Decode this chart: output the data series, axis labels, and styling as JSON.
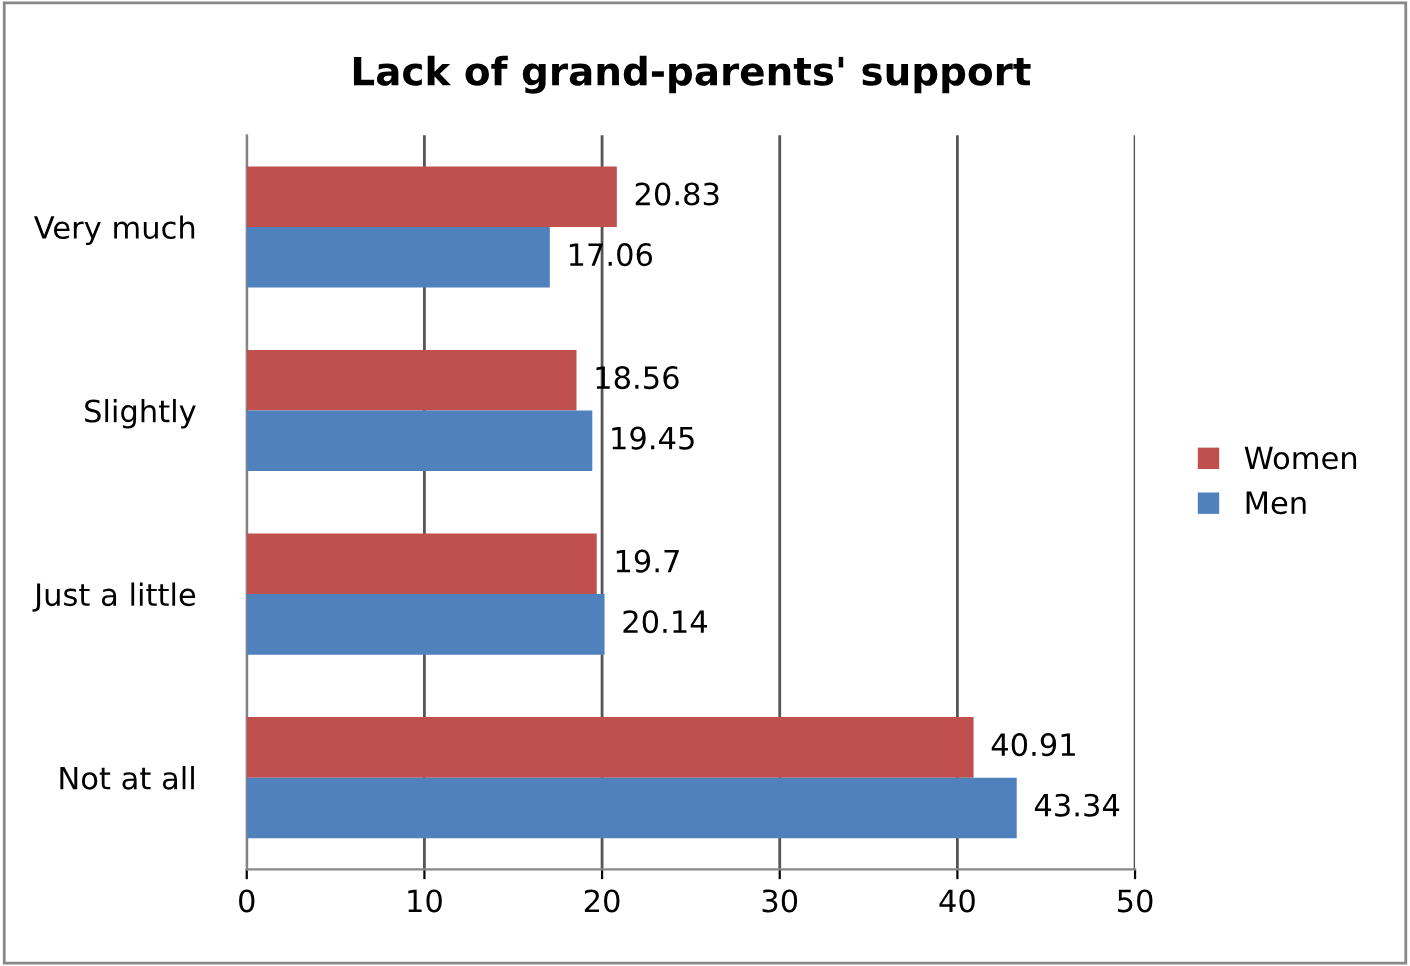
{
  "chart_data": {
    "type": "bar",
    "orientation": "horizontal",
    "title": "Lack of grand-parents' support",
    "categories": [
      "Very much",
      "Slightly",
      "Just a little",
      "Not at all"
    ],
    "series": [
      {
        "name": "Women",
        "color": "#c0504d",
        "values": [
          20.83,
          18.56,
          19.7,
          40.91
        ]
      },
      {
        "name": "Men",
        "color": "#4f81bd",
        "values": [
          17.06,
          19.45,
          20.14,
          43.34
        ]
      }
    ],
    "xlim": [
      0,
      50
    ],
    "xticks": [
      0,
      10,
      20,
      30,
      40,
      50
    ],
    "grid": "x",
    "legend": "right",
    "data_labels": true
  }
}
